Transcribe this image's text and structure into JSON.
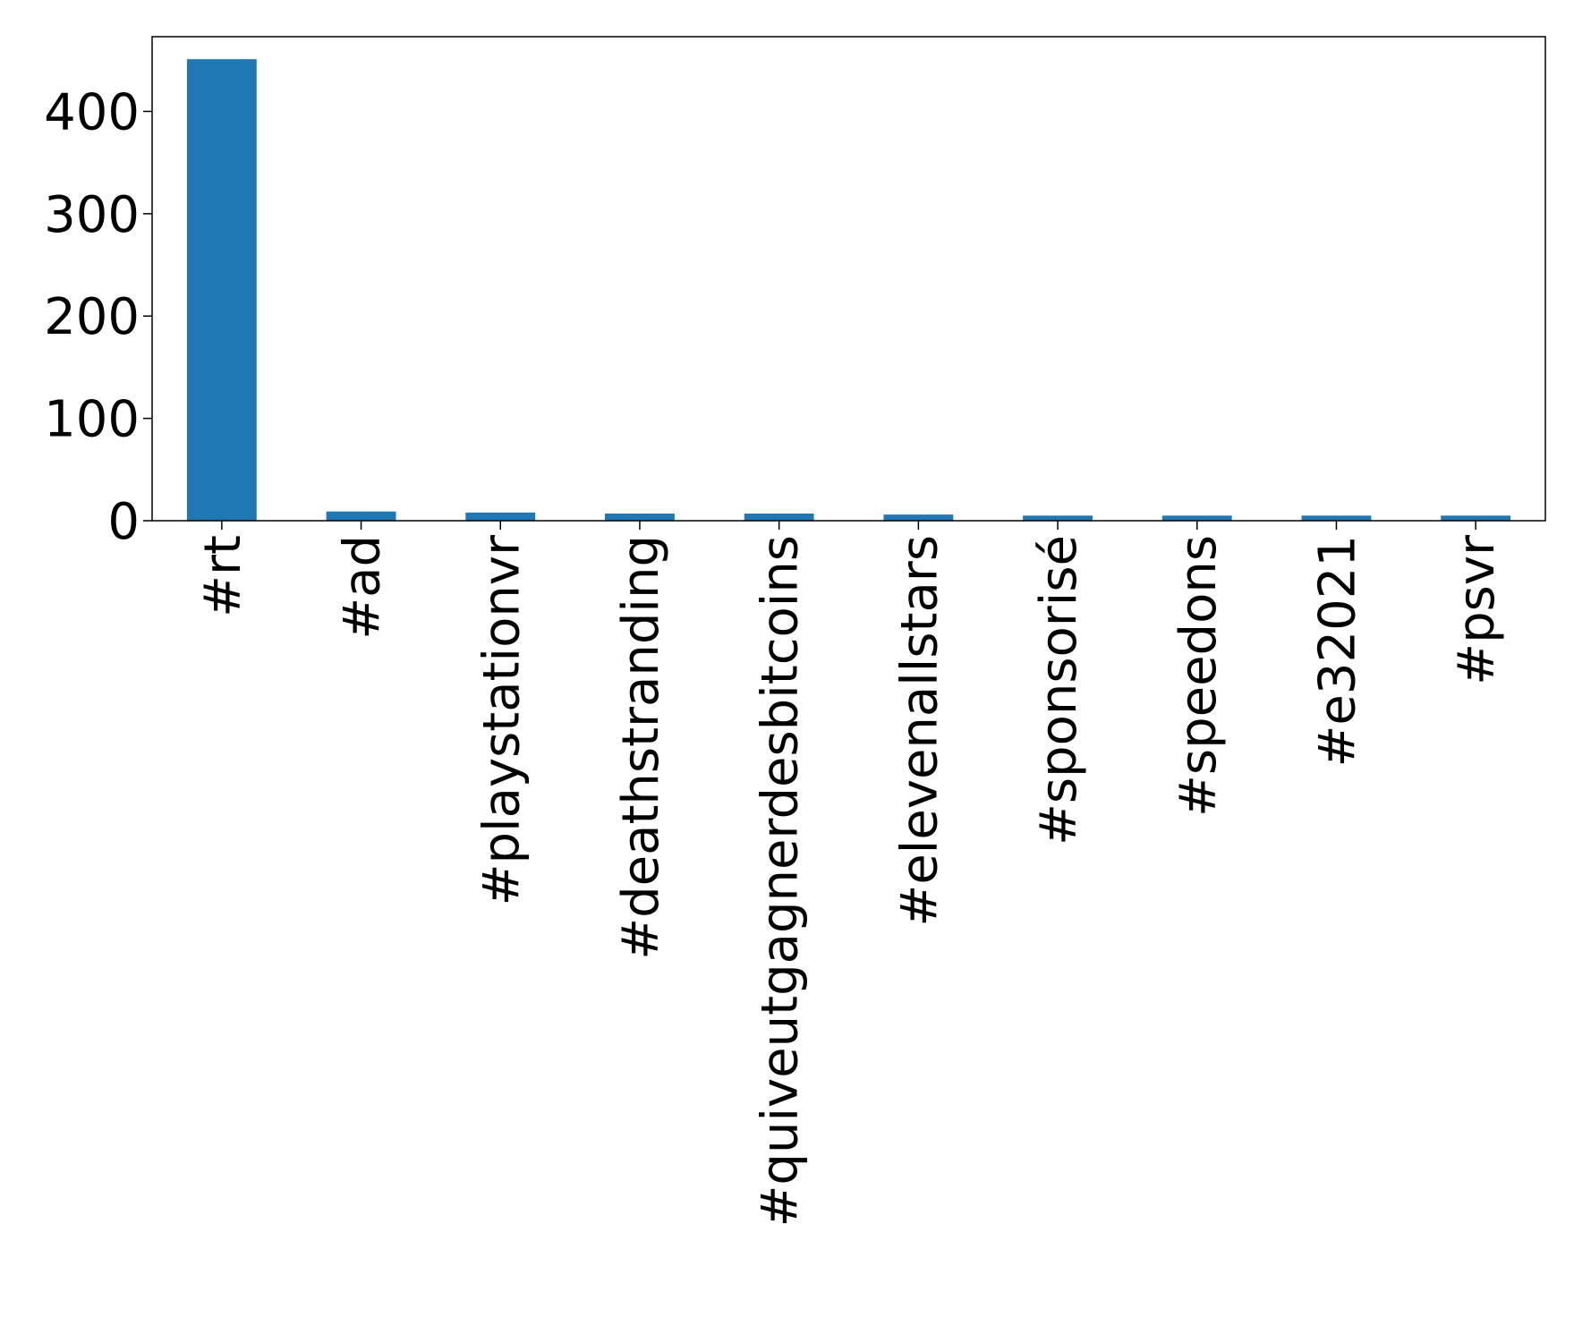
{
  "chart_data": {
    "type": "bar",
    "categories": [
      "#rt",
      "#ad",
      "#playstationvr",
      "#deathstranding",
      "#quiveutgagnerdesbitcoins",
      "#elevenallstars",
      "#sponsorisé",
      "#speedons",
      "#e32021",
      "#psvr"
    ],
    "values": [
      451,
      9,
      8,
      7,
      7,
      6,
      5,
      5,
      5,
      5
    ],
    "color": "#1f77b4",
    "ylim": [
      0,
      473
    ],
    "yticks": [
      0,
      100,
      200,
      300,
      400
    ],
    "grid": false
  }
}
